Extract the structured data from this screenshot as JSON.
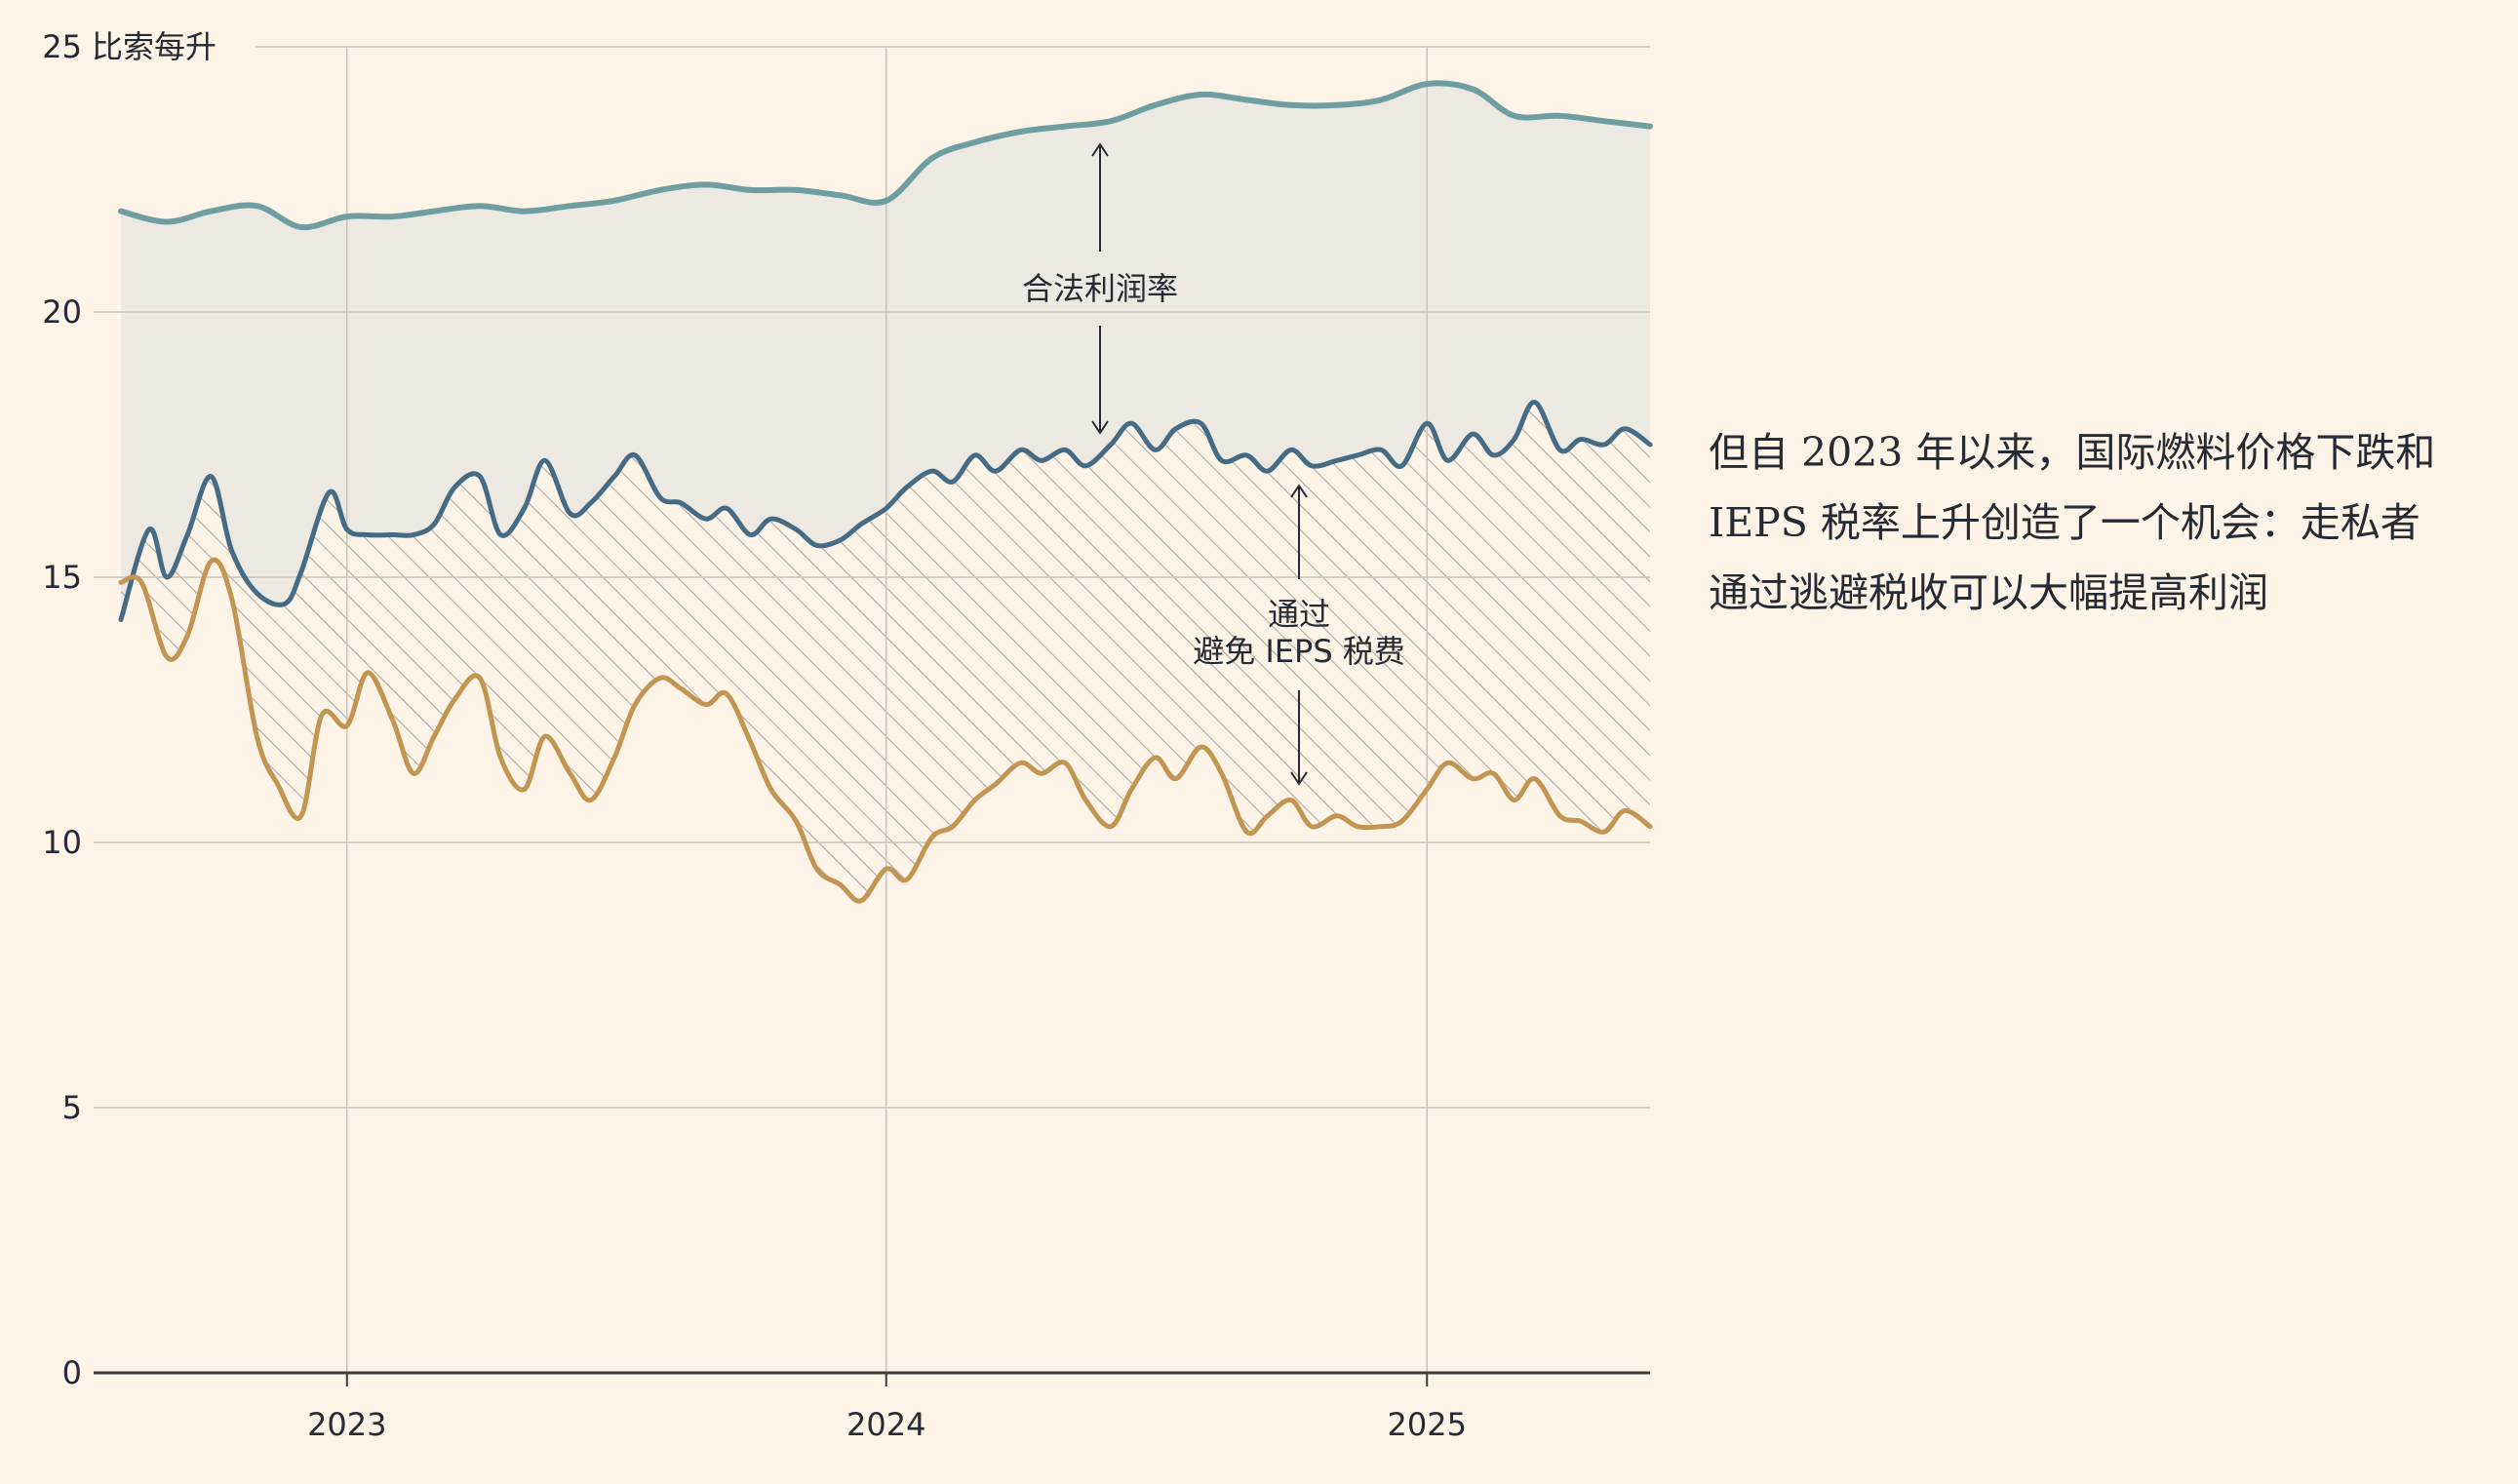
{
  "chart_data": {
    "type": "line",
    "ylabel": "比索每升",
    "ylim": [
      0,
      25
    ],
    "yticks": [
      0,
      5,
      10,
      15,
      20,
      25
    ],
    "xlim": [
      "2022-08-01",
      "2025-06-01"
    ],
    "xticks": [
      "2023",
      "2024",
      "2025"
    ],
    "grid": true,
    "colors": {
      "top": "#6e9ea0",
      "mid": "#456b85",
      "bottom": "#c39553",
      "legal_fill": "#ece8e2",
      "hatch": "#b0aaa1",
      "grid": "#c9c3bb",
      "axis": "#3c3c3c",
      "text": "#262a33"
    },
    "series": [
      {
        "key": "top",
        "x": [
          "2022-08",
          "2022-09",
          "2022-10",
          "2022-11",
          "2022-12",
          "2023-01",
          "2023-02",
          "2023-03",
          "2023-04",
          "2023-05",
          "2023-06",
          "2023-07",
          "2023-08",
          "2023-09",
          "2023-10",
          "2023-11",
          "2023-12",
          "2024-01",
          "2024-02",
          "2024-03",
          "2024-04",
          "2024-05",
          "2024-06",
          "2024-07",
          "2024-08",
          "2024-09",
          "2024-10",
          "2024-11",
          "2024-12",
          "2025-01",
          "2025-02",
          "2025-03",
          "2025-04",
          "2025-05",
          "2025-06"
        ],
        "y": [
          21.9,
          21.7,
          21.9,
          22.0,
          21.6,
          21.8,
          21.8,
          21.9,
          22.0,
          21.9,
          22.0,
          22.1,
          22.3,
          22.4,
          22.3,
          22.3,
          22.2,
          22.1,
          22.9,
          23.2,
          23.4,
          23.5,
          23.6,
          23.9,
          24.1,
          24.0,
          23.9,
          23.9,
          24.0,
          24.3,
          24.2,
          23.7,
          23.7,
          23.6,
          23.5
        ]
      },
      {
        "key": "mid",
        "x": [
          "2022-08",
          "2022-08-20",
          "2022-09",
          "2022-09-15",
          "2022-10",
          "2022-10-15",
          "2022-11",
          "2022-11-20",
          "2022-12",
          "2022-12-20",
          "2023-01",
          "2023-01-15",
          "2023-02",
          "2023-02-15",
          "2023-03",
          "2023-03-15",
          "2023-04",
          "2023-04-15",
          "2023-05",
          "2023-05-15",
          "2023-06",
          "2023-06-15",
          "2023-07",
          "2023-07-15",
          "2023-08",
          "2023-08-15",
          "2023-09",
          "2023-09-15",
          "2023-10",
          "2023-10-15",
          "2023-11",
          "2023-11-15",
          "2023-12",
          "2023-12-15",
          "2024-01",
          "2024-01-15",
          "2024-02",
          "2024-02-15",
          "2024-03",
          "2024-03-15",
          "2024-04",
          "2024-04-15",
          "2024-05",
          "2024-05-15",
          "2024-06",
          "2024-06-15",
          "2024-07",
          "2024-07-15",
          "2024-08",
          "2024-08-15",
          "2024-09",
          "2024-09-15",
          "2024-10",
          "2024-10-15",
          "2024-11",
          "2024-11-15",
          "2024-12",
          "2024-12-15",
          "2025-01",
          "2025-01-15",
          "2025-02",
          "2025-02-15",
          "2025-03",
          "2025-03-15",
          "2025-04",
          "2025-04-15",
          "2025-05",
          "2025-05-15",
          "2025-06"
        ],
        "y": [
          14.2,
          15.9,
          15.0,
          15.8,
          16.9,
          15.5,
          14.7,
          14.5,
          15.1,
          16.6,
          15.9,
          15.8,
          15.8,
          15.8,
          16.0,
          16.7,
          16.9,
          15.8,
          16.3,
          17.2,
          16.2,
          16.4,
          16.9,
          17.3,
          16.5,
          16.4,
          16.1,
          16.3,
          15.8,
          16.1,
          15.9,
          15.6,
          15.7,
          16.0,
          16.3,
          16.7,
          17.0,
          16.8,
          17.3,
          17.0,
          17.4,
          17.2,
          17.4,
          17.1,
          17.5,
          17.9,
          17.4,
          17.8,
          17.9,
          17.2,
          17.3,
          17.0,
          17.4,
          17.1,
          17.2,
          17.3,
          17.4,
          17.1,
          17.9,
          17.2,
          17.7,
          17.3,
          17.6,
          18.3,
          17.4,
          17.6,
          17.5,
          17.8,
          17.5
        ]
      },
      {
        "key": "bottom",
        "x": [
          "2022-08",
          "2022-08-15",
          "2022-09",
          "2022-09-15",
          "2022-10",
          "2022-10-15",
          "2022-11",
          "2022-11-15",
          "2022-12",
          "2022-12-15",
          "2023-01",
          "2023-01-15",
          "2023-02",
          "2023-02-15",
          "2023-03",
          "2023-03-15",
          "2023-04",
          "2023-04-15",
          "2023-05",
          "2023-05-15",
          "2023-06",
          "2023-06-15",
          "2023-07",
          "2023-07-15",
          "2023-08",
          "2023-08-15",
          "2023-09",
          "2023-09-15",
          "2023-10",
          "2023-10-15",
          "2023-11",
          "2023-11-15",
          "2023-12",
          "2023-12-15",
          "2024-01",
          "2024-01-15",
          "2024-02",
          "2024-02-15",
          "2024-03",
          "2024-03-15",
          "2024-04",
          "2024-04-15",
          "2024-05",
          "2024-05-15",
          "2024-06",
          "2024-06-15",
          "2024-07",
          "2024-07-15",
          "2024-08",
          "2024-08-15",
          "2024-09",
          "2024-09-15",
          "2024-10",
          "2024-10-15",
          "2024-11",
          "2024-11-15",
          "2024-12",
          "2024-12-15",
          "2025-01",
          "2025-01-15",
          "2025-02",
          "2025-02-15",
          "2025-03",
          "2025-03-15",
          "2025-04",
          "2025-04-15",
          "2025-05",
          "2025-05-15",
          "2025-06"
        ],
        "y": [
          14.9,
          14.9,
          13.5,
          13.9,
          15.3,
          14.6,
          12.0,
          11.1,
          10.5,
          12.4,
          12.2,
          13.2,
          12.3,
          11.3,
          12.0,
          12.7,
          13.1,
          11.6,
          11.0,
          12.0,
          11.3,
          10.8,
          11.6,
          12.6,
          13.1,
          12.9,
          12.6,
          12.8,
          11.9,
          11.0,
          10.4,
          9.5,
          9.2,
          8.9,
          9.5,
          9.3,
          10.1,
          10.3,
          10.8,
          11.1,
          11.5,
          11.3,
          11.5,
          10.8,
          10.3,
          11.0,
          11.6,
          11.2,
          11.8,
          11.3,
          10.2,
          10.5,
          10.8,
          10.3,
          10.5,
          10.3,
          10.3,
          10.4,
          11.0,
          11.5,
          11.2,
          11.3,
          10.8,
          11.2,
          10.5,
          10.4,
          10.2,
          10.6,
          10.3
        ]
      }
    ],
    "annotations": {
      "legal_margin": "合法利润率",
      "evasion_line1": "通过",
      "evasion_line2": "避免 IEPS 税费"
    }
  },
  "caption": {
    "line1": "但自 2023 年以来，国际燃料价格下跌和",
    "line2": "IEPS 税率上升创造了一个机会：走私者",
    "line3": "通过逃避税收可以大幅提高利润"
  }
}
